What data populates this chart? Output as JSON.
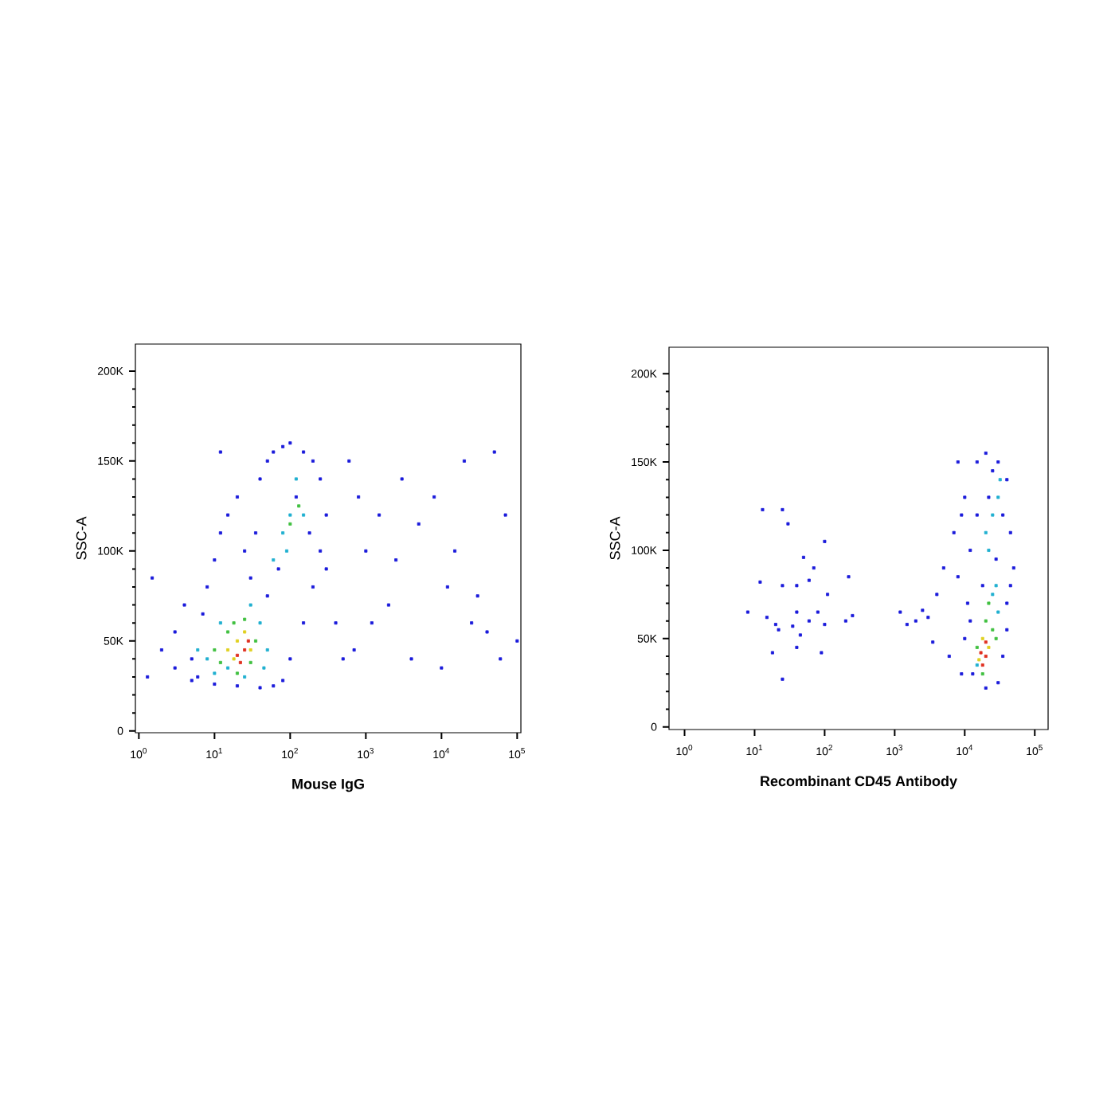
{
  "chart_data": [
    {
      "type": "scatter",
      "xlabel": "Mouse IgG",
      "ylabel": "SSC-A",
      "log": "x",
      "marker": "square",
      "xlim": [
        0.9,
        112000
      ],
      "ylim": [
        -1000,
        215000
      ],
      "xticks": [
        {
          "value": 1,
          "label": "10$^{0}$"
        },
        {
          "value": 10,
          "label": "10$^{1}$"
        },
        {
          "value": 100,
          "label": "10$^{2}$"
        },
        {
          "value": 1000,
          "label": "10$^{3}$"
        },
        {
          "value": 10000,
          "label": "10$^{4}$"
        },
        {
          "value": 100000,
          "label": "10$^{5}$"
        }
      ],
      "yticks": [
        0,
        {
          "value": 50000,
          "label": "50K"
        },
        {
          "value": 100000,
          "label": "100K"
        },
        {
          "value": 150000,
          "label": "150K"
        },
        {
          "value": 200000,
          "label": "200K"
        }
      ],
      "series": [
        {
          "color": "#1a1adb",
          "x": [
            1.5,
            2,
            1.3,
            3,
            4,
            5,
            6,
            7,
            8,
            10,
            12,
            15,
            12,
            20,
            25,
            30,
            40,
            50,
            60,
            80,
            100,
            150,
            200,
            250,
            300,
            250,
            200,
            150,
            100,
            80,
            60,
            40,
            20,
            10,
            5,
            3,
            70,
            50,
            35,
            120,
            180,
            300,
            400,
            500,
            600,
            800,
            1000,
            1500,
            2000,
            3000,
            4000,
            5000,
            8000,
            10000,
            15000,
            20000,
            30000,
            40000,
            50000,
            70000,
            100000,
            60000,
            25000,
            12000,
            2500,
            700,
            1200
          ],
          "values": [
            85000,
            45000,
            30000,
            55000,
            70000,
            40000,
            30000,
            65000,
            80000,
            95000,
            110000,
            120000,
            155000,
            130000,
            100000,
            85000,
            140000,
            150000,
            155000,
            158000,
            160000,
            155000,
            150000,
            140000,
            120000,
            100000,
            80000,
            60000,
            40000,
            28000,
            25000,
            24000,
            25000,
            26000,
            28000,
            35000,
            90000,
            75000,
            110000,
            130000,
            110000,
            90000,
            60000,
            40000,
            150000,
            130000,
            100000,
            120000,
            70000,
            140000,
            40000,
            115000,
            130000,
            35000,
            100000,
            150000,
            75000,
            55000,
            155000,
            120000,
            50000,
            40000,
            60000,
            80000,
            95000,
            45000,
            60000
          ]
        },
        {
          "color": "#20b0d0",
          "x": [
            8,
            12,
            15,
            30,
            40,
            50,
            60,
            80,
            100,
            120,
            150,
            90,
            6,
            10,
            25,
            45
          ],
          "values": [
            40000,
            60000,
            35000,
            70000,
            60000,
            45000,
            95000,
            110000,
            120000,
            140000,
            120000,
            100000,
            45000,
            32000,
            30000,
            35000
          ]
        },
        {
          "color": "#40c040",
          "x": [
            10,
            12,
            15,
            18,
            25,
            35,
            30,
            20,
            100,
            130
          ],
          "values": [
            45000,
            38000,
            55000,
            60000,
            62000,
            50000,
            38000,
            32000,
            115000,
            125000
          ]
        },
        {
          "color": "#e0d020",
          "x": [
            15,
            20,
            30,
            25,
            18
          ],
          "values": [
            45000,
            50000,
            45000,
            55000,
            40000
          ]
        },
        {
          "color": "#e03020",
          "x": [
            20,
            25,
            22,
            28
          ],
          "values": [
            42000,
            45000,
            38000,
            50000
          ]
        }
      ]
    },
    {
      "type": "scatter",
      "xlabel": "Recombinant CD45 Antibody",
      "ylabel": "SSC-A",
      "log": "x",
      "marker": "square",
      "xlim": [
        0.6,
        155000
      ],
      "ylim": [
        -1500,
        215000
      ],
      "xticks": [
        {
          "value": 1,
          "label": "10$^{0}$"
        },
        {
          "value": 10,
          "label": "10$^{1}$"
        },
        {
          "value": 100,
          "label": "10$^{2}$"
        },
        {
          "value": 1000,
          "label": "10$^{3}$"
        },
        {
          "value": 10000,
          "label": "10$^{4}$"
        },
        {
          "value": 100000,
          "label": "10$^{5}$"
        }
      ],
      "yticks": [
        0,
        {
          "value": 50000,
          "label": "50K"
        },
        {
          "value": 100000,
          "label": "100K"
        },
        {
          "value": 150000,
          "label": "150K"
        },
        {
          "value": 200000,
          "label": "200K"
        }
      ],
      "series": [
        {
          "color": "#1a1adb",
          "x": [
            13,
            25,
            30,
            12,
            25,
            40,
            60,
            100,
            50,
            70,
            8,
            15,
            20,
            35,
            40,
            60,
            80,
            100,
            22,
            45,
            18,
            40,
            90,
            25,
            220,
            200,
            250,
            110,
            1200,
            1500,
            2000,
            2500,
            3000,
            4000,
            3500,
            5000,
            6000,
            7000,
            8000,
            9000,
            10000,
            11000,
            12000,
            15000,
            20000,
            25000,
            30000,
            40000,
            45000,
            50000,
            40000,
            35000,
            30000,
            20000,
            13000,
            10000,
            8000,
            9000,
            15000,
            12000,
            18000,
            35000,
            28000,
            22000,
            45000,
            40000
          ],
          "values": [
            123000,
            123000,
            115000,
            82000,
            80000,
            80000,
            83000,
            105000,
            96000,
            90000,
            65000,
            62000,
            58000,
            57000,
            65000,
            60000,
            65000,
            58000,
            55000,
            52000,
            42000,
            45000,
            42000,
            27000,
            85000,
            60000,
            63000,
            75000,
            65000,
            58000,
            60000,
            66000,
            62000,
            75000,
            48000,
            90000,
            40000,
            110000,
            150000,
            30000,
            130000,
            70000,
            100000,
            150000,
            155000,
            145000,
            150000,
            140000,
            110000,
            90000,
            70000,
            40000,
            25000,
            22000,
            30000,
            50000,
            85000,
            120000,
            120000,
            60000,
            80000,
            120000,
            95000,
            130000,
            80000,
            55000
          ]
        },
        {
          "color": "#20b0d0",
          "x": [
            20000,
            25000,
            30000,
            22000,
            28000,
            30000,
            15000,
            25000,
            32000
          ],
          "values": [
            110000,
            120000,
            130000,
            100000,
            80000,
            65000,
            35000,
            75000,
            140000
          ]
        },
        {
          "color": "#40c040",
          "x": [
            20000,
            25000,
            15000,
            18000,
            28000,
            22000
          ],
          "values": [
            60000,
            55000,
            45000,
            30000,
            50000,
            70000
          ]
        },
        {
          "color": "#e0d020",
          "x": [
            18000,
            22000,
            16000
          ],
          "values": [
            50000,
            45000,
            38000
          ]
        },
        {
          "color": "#e03020",
          "x": [
            17000,
            20000,
            18000,
            20000
          ],
          "values": [
            42000,
            40000,
            35000,
            48000
          ]
        }
      ]
    }
  ]
}
